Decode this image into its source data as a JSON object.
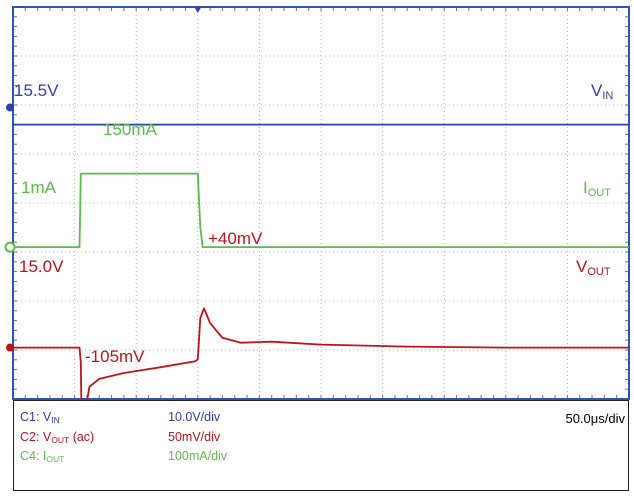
{
  "chart_data": {
    "type": "line",
    "title": "",
    "grid": true,
    "x": {
      "unit": "us",
      "per_div": 50.0,
      "divisions": 10,
      "range": [
        0,
        500
      ]
    },
    "y": {
      "divisions": 8
    },
    "series": [
      {
        "name": "VIN",
        "color": "#2f3fb5",
        "level_label": "15.5V",
        "level_div": 2.4,
        "points": [
          [
            0,
            0
          ],
          [
            500,
            0
          ]
        ]
      },
      {
        "name": "IOUT",
        "color": "#5dbb4b",
        "level_label": "1mA",
        "level_div": 4.9,
        "scale_per_div": 100,
        "annotations": [
          {
            "text": "150mA",
            "x": 75,
            "value": 150
          }
        ],
        "points": [
          [
            0,
            0
          ],
          [
            54,
            0
          ],
          [
            55,
            150
          ],
          [
            150,
            150
          ],
          [
            152,
            40
          ],
          [
            154,
            0
          ],
          [
            500,
            0
          ]
        ]
      },
      {
        "name": "VOUT",
        "color": "#c0141c",
        "level_label": "15.0V",
        "level_div": 6.95,
        "scale_per_div": 50,
        "annotations": [
          {
            "text": "+40mV",
            "x": 170,
            "value": 40
          },
          {
            "text": "-105mV",
            "x": 62,
            "value": -105
          }
        ],
        "points": [
          [
            0,
            0
          ],
          [
            54,
            0
          ],
          [
            55,
            -15
          ],
          [
            56,
            -105
          ],
          [
            58,
            -70
          ],
          [
            62,
            -40
          ],
          [
            70,
            -32
          ],
          [
            90,
            -26
          ],
          [
            120,
            -20
          ],
          [
            148,
            -14
          ],
          [
            150,
            -12
          ],
          [
            152,
            30
          ],
          [
            155,
            40
          ],
          [
            160,
            25
          ],
          [
            170,
            10
          ],
          [
            185,
            5
          ],
          [
            210,
            6
          ],
          [
            250,
            3
          ],
          [
            320,
            1
          ],
          [
            400,
            0
          ],
          [
            500,
            0
          ]
        ]
      }
    ]
  },
  "info": {
    "rows": [
      {
        "channel": "C1: V",
        "channel_sub": "IN",
        "channel_suffix": "",
        "scale": "10.0V/div",
        "color": "#2f3fb5"
      },
      {
        "channel": "C2: V",
        "channel_sub": "OUT",
        "channel_suffix": " (ac)",
        "scale": "50mV/div",
        "color": "#c0141c"
      },
      {
        "channel": "C4: I",
        "channel_sub": "OUT",
        "channel_suffix": "",
        "scale": "100mA/div",
        "color": "#5dbb4b"
      }
    ],
    "timebase": "50.0μs/div"
  },
  "labels": {
    "vin_right": "V",
    "vin_right_sub": "IN",
    "iout_right": "I",
    "iout_right_sub": "OUT",
    "vout_right": "V",
    "vout_right_sub": "OUT"
  }
}
